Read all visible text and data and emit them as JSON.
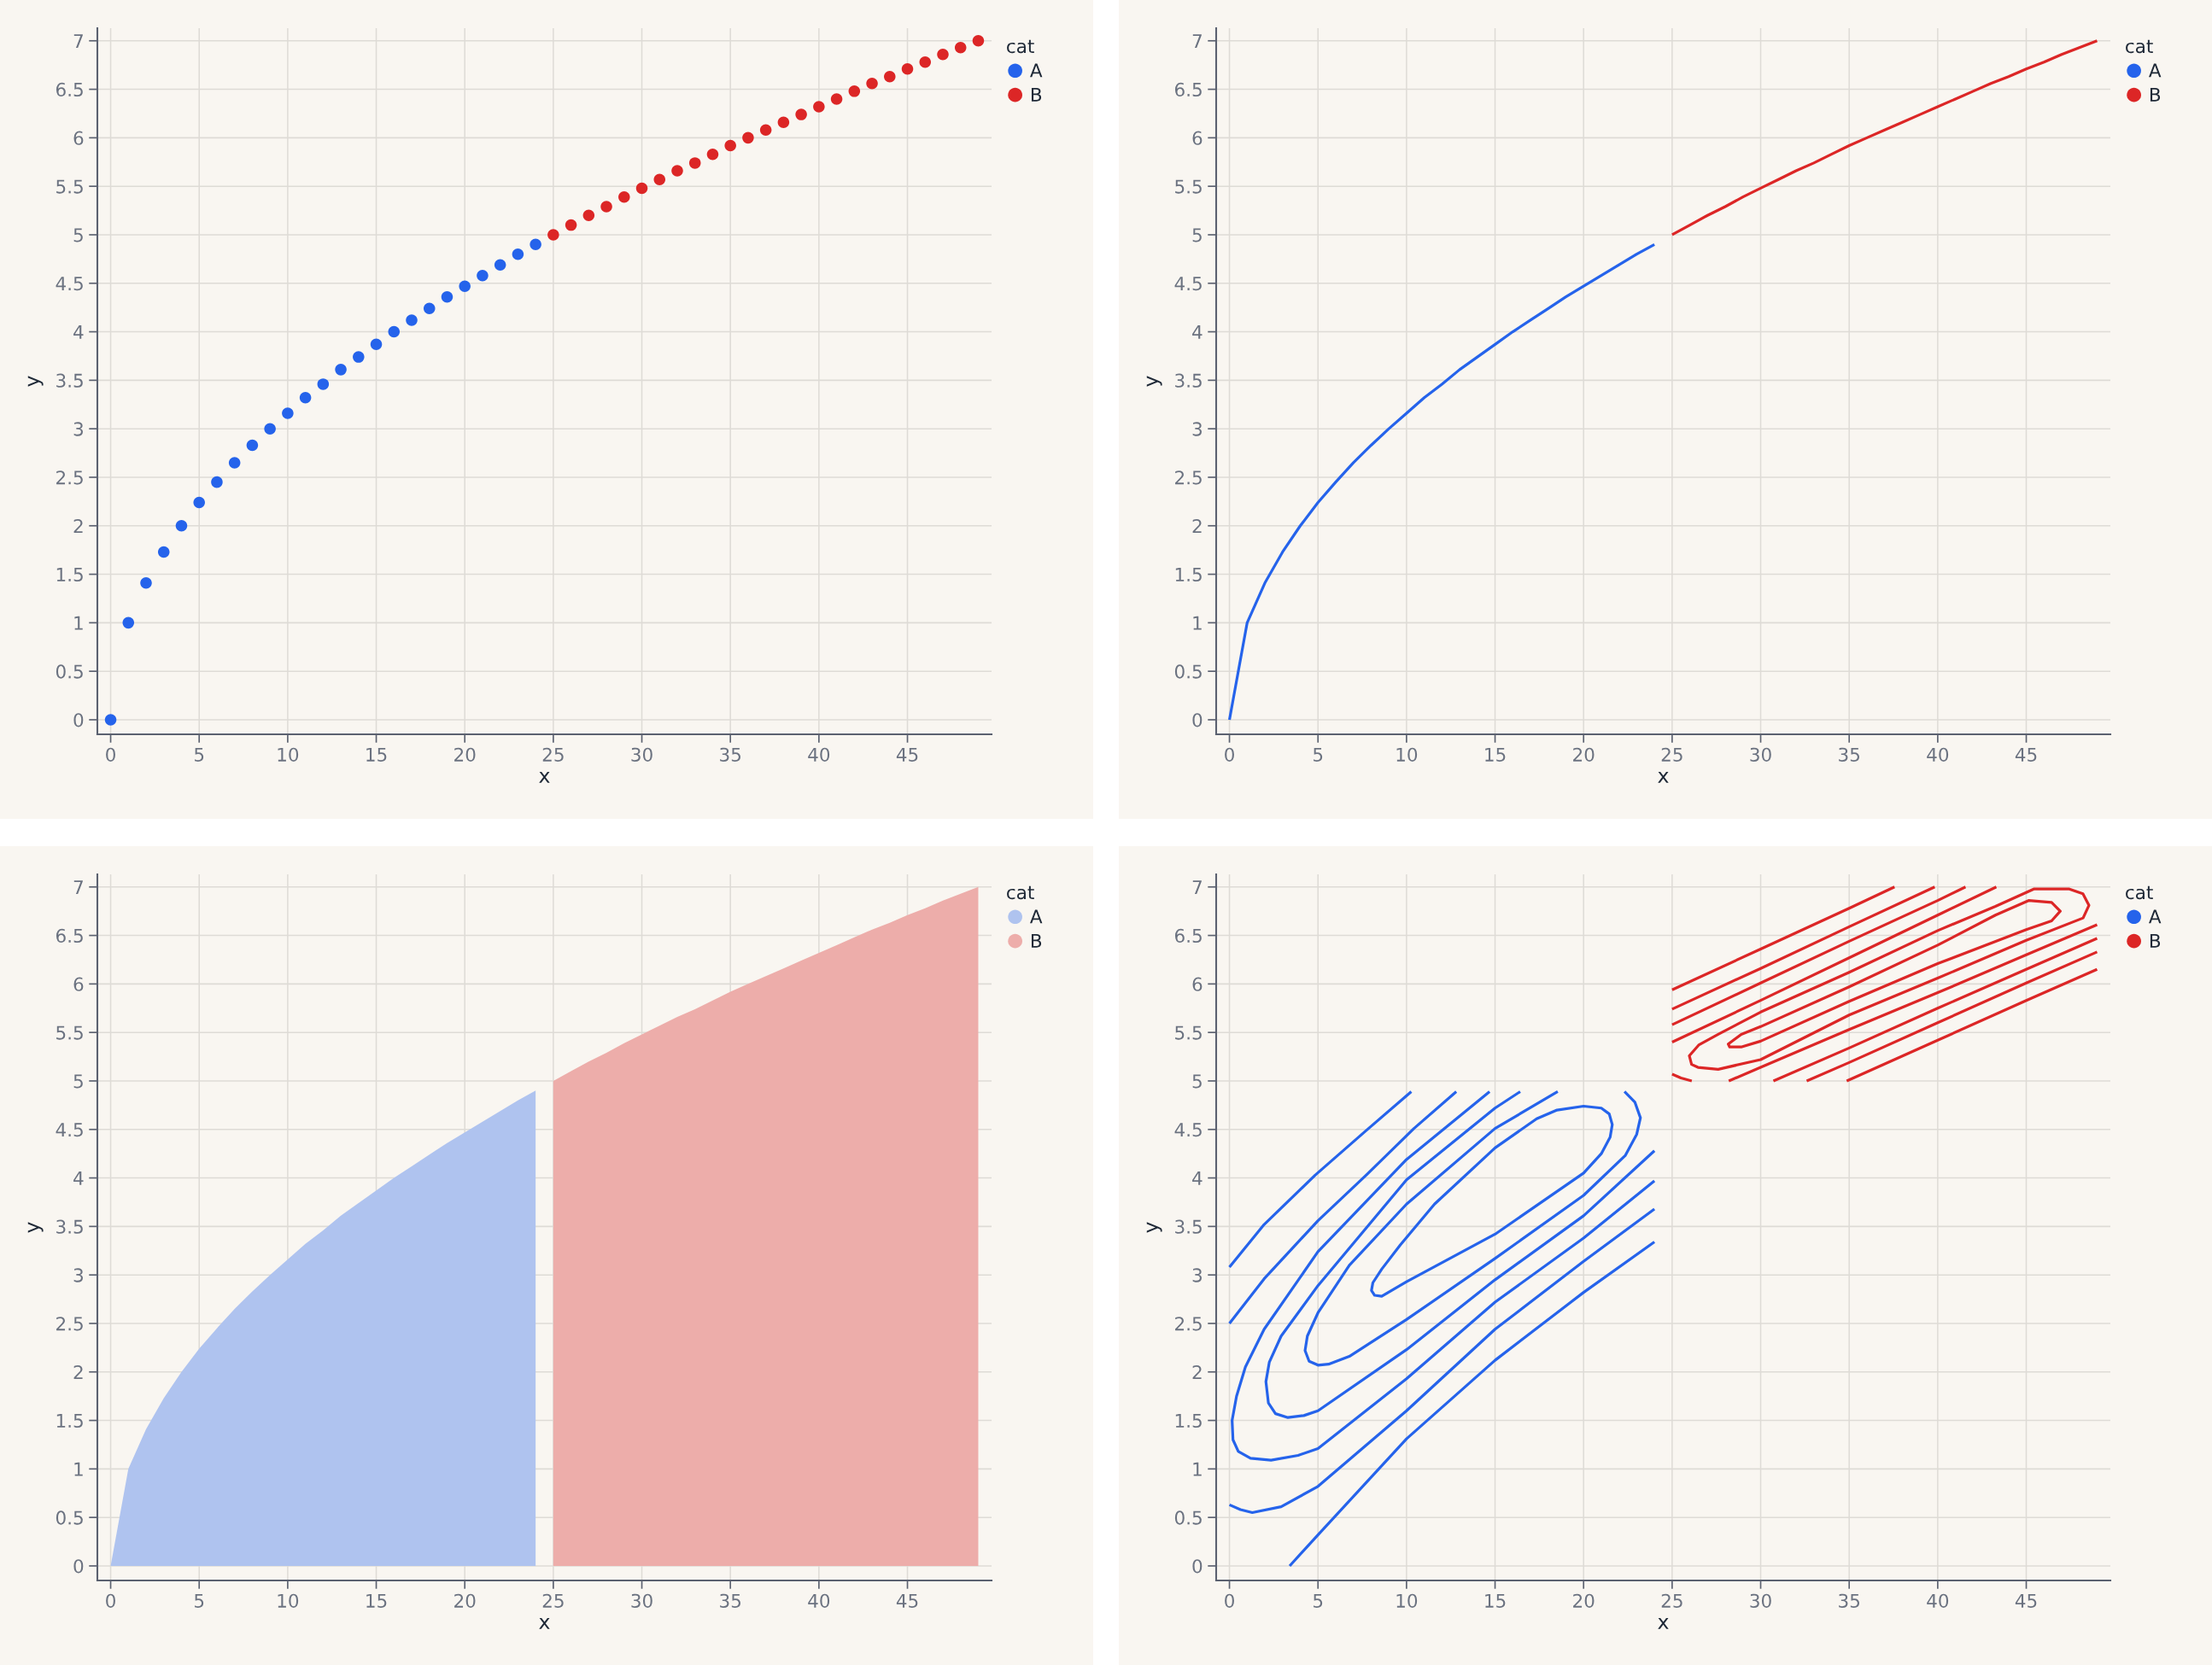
{
  "chart_data": [
    {
      "type": "scatter",
      "marker": "circle",
      "xlabel": "x",
      "ylabel": "y",
      "legend_title": "cat",
      "legend": "top right",
      "grid": true,
      "xlim": [
        -0.75,
        49.75
      ],
      "ylim": [
        -0.15,
        7.13
      ],
      "xticks": [
        0,
        5,
        10,
        15,
        20,
        25,
        30,
        35,
        40,
        45
      ],
      "yticks": [
        0,
        0.5,
        1,
        1.5,
        2,
        2.5,
        3,
        3.5,
        4,
        4.5,
        5,
        5.5,
        6,
        6.5,
        7
      ],
      "series": [
        {
          "name": "A",
          "color": "#2563eb",
          "x": [
            0,
            1,
            2,
            3,
            4,
            5,
            6,
            7,
            8,
            9,
            10,
            11,
            12,
            13,
            14,
            15,
            16,
            17,
            18,
            19,
            20,
            21,
            22,
            23,
            24
          ],
          "values": [
            0,
            1,
            1.41,
            1.73,
            2,
            2.24,
            2.45,
            2.65,
            2.83,
            3,
            3.16,
            3.32,
            3.46,
            3.61,
            3.74,
            3.87,
            4,
            4.12,
            4.24,
            4.36,
            4.47,
            4.58,
            4.69,
            4.8,
            4.9
          ]
        },
        {
          "name": "B",
          "color": "#dc2626",
          "x": [
            25,
            26,
            27,
            28,
            29,
            30,
            31,
            32,
            33,
            34,
            35,
            36,
            37,
            38,
            39,
            40,
            41,
            42,
            43,
            44,
            45,
            46,
            47,
            48,
            49
          ],
          "values": [
            5,
            5.1,
            5.2,
            5.29,
            5.39,
            5.48,
            5.57,
            5.66,
            5.74,
            5.83,
            5.92,
            6,
            6.08,
            6.16,
            6.24,
            6.32,
            6.4,
            6.48,
            6.56,
            6.63,
            6.71,
            6.78,
            6.86,
            6.93,
            7
          ]
        }
      ]
    },
    {
      "type": "line",
      "xlabel": "x",
      "ylabel": "y",
      "legend_title": "cat",
      "legend": "top right",
      "grid": true,
      "xlim": [
        -0.75,
        49.75
      ],
      "ylim": [
        -0.15,
        7.13
      ],
      "xticks": [
        0,
        5,
        10,
        15,
        20,
        25,
        30,
        35,
        40,
        45
      ],
      "yticks": [
        0,
        0.5,
        1,
        1.5,
        2,
        2.5,
        3,
        3.5,
        4,
        4.5,
        5,
        5.5,
        6,
        6.5,
        7
      ],
      "series": [
        {
          "name": "A",
          "color": "#2563eb",
          "x": [
            0,
            1,
            2,
            3,
            4,
            5,
            6,
            7,
            8,
            9,
            10,
            11,
            12,
            13,
            14,
            15,
            16,
            17,
            18,
            19,
            20,
            21,
            22,
            23,
            24
          ],
          "values": [
            0,
            1,
            1.41,
            1.73,
            2,
            2.24,
            2.45,
            2.65,
            2.83,
            3,
            3.16,
            3.32,
            3.46,
            3.61,
            3.74,
            3.87,
            4,
            4.12,
            4.24,
            4.36,
            4.47,
            4.58,
            4.69,
            4.8,
            4.9
          ]
        },
        {
          "name": "B",
          "color": "#dc2626",
          "x": [
            25,
            26,
            27,
            28,
            29,
            30,
            31,
            32,
            33,
            34,
            35,
            36,
            37,
            38,
            39,
            40,
            41,
            42,
            43,
            44,
            45,
            46,
            47,
            48,
            49
          ],
          "values": [
            5,
            5.1,
            5.2,
            5.29,
            5.39,
            5.48,
            5.57,
            5.66,
            5.74,
            5.83,
            5.92,
            6,
            6.08,
            6.16,
            6.24,
            6.32,
            6.4,
            6.48,
            6.56,
            6.63,
            6.71,
            6.78,
            6.86,
            6.93,
            7
          ]
        }
      ]
    },
    {
      "type": "area",
      "xlabel": "x",
      "ylabel": "y",
      "legend_title": "cat",
      "legend": "top right",
      "grid": true,
      "xlim": [
        -0.75,
        49.75
      ],
      "ylim": [
        -0.15,
        7.13
      ],
      "xticks": [
        0,
        5,
        10,
        15,
        20,
        25,
        30,
        35,
        40,
        45
      ],
      "yticks": [
        0,
        0.5,
        1,
        1.5,
        2,
        2.5,
        3,
        3.5,
        4,
        4.5,
        5,
        5.5,
        6,
        6.5,
        7
      ],
      "series": [
        {
          "name": "A",
          "color": "#afc3ef",
          "x": [
            0,
            1,
            2,
            3,
            4,
            5,
            6,
            7,
            8,
            9,
            10,
            11,
            12,
            13,
            14,
            15,
            16,
            17,
            18,
            19,
            20,
            21,
            22,
            23,
            24
          ],
          "values": [
            0,
            1,
            1.41,
            1.73,
            2,
            2.24,
            2.45,
            2.65,
            2.83,
            3,
            3.16,
            3.32,
            3.46,
            3.61,
            3.74,
            3.87,
            4,
            4.12,
            4.24,
            4.36,
            4.47,
            4.58,
            4.69,
            4.8,
            4.9
          ]
        },
        {
          "name": "B",
          "color": "#edadaa",
          "x": [
            25,
            26,
            27,
            28,
            29,
            30,
            31,
            32,
            33,
            34,
            35,
            36,
            37,
            38,
            39,
            40,
            41,
            42,
            43,
            44,
            45,
            46,
            47,
            48,
            49
          ],
          "values": [
            5,
            5.1,
            5.2,
            5.29,
            5.39,
            5.48,
            5.57,
            5.66,
            5.74,
            5.83,
            5.92,
            6,
            6.08,
            6.16,
            6.24,
            6.32,
            6.4,
            6.48,
            6.56,
            6.63,
            6.71,
            6.78,
            6.86,
            6.93,
            7
          ]
        }
      ]
    },
    {
      "type": "line",
      "xlabel": "x",
      "ylabel": "y",
      "legend_title": "cat",
      "legend": "top right",
      "grid": true,
      "xlim": [
        -0.75,
        49.75
      ],
      "ylim": [
        -0.15,
        7.13
      ],
      "xticks": [
        0,
        5,
        10,
        15,
        20,
        25,
        30,
        35,
        40,
        45
      ],
      "yticks": [
        0,
        0.5,
        1,
        1.5,
        2,
        2.5,
        3,
        3.5,
        4,
        4.5,
        5,
        5.5,
        6,
        6.5,
        7
      ],
      "series": [
        {
          "name": "A",
          "color": "#2563eb",
          "x": [
            0,
            1.96,
            4.85,
            7.73,
            10.27
          ],
          "values": [
            3.08,
            3.52,
            4.03,
            4.49,
            4.89
          ]
        },
        {
          "color": "#2563eb",
          "x": [
            0,
            1.96,
            5.0,
            7.73,
            10.42,
            12.81
          ],
          "values": [
            2.5,
            2.96,
            3.56,
            4.03,
            4.51,
            4.89
          ]
        },
        {
          "color": "#2563eb",
          "x": [
            14.69,
            10.0,
            5.0,
            1.96,
            0.9,
            0.4,
            0.15,
            0.2,
            0.5,
            1.19,
            2.35,
            3.88,
            5.0,
            10.0,
            15.0,
            20.0,
            24.0
          ],
          "values": [
            4.89,
            4.19,
            3.24,
            2.44,
            2.05,
            1.75,
            1.5,
            1.3,
            1.18,
            1.11,
            1.09,
            1.14,
            1.21,
            1.93,
            2.72,
            3.38,
            3.97
          ]
        },
        {
          "color": "#2563eb",
          "x": [
            16.42,
            15.0,
            10.0,
            5.0,
            2.92,
            2.25,
            2.06,
            2.2,
            2.6,
            3.3,
            4.2,
            5.0,
            10.0,
            15.0,
            20.0,
            24.0
          ],
          "values": [
            4.89,
            4.72,
            3.98,
            2.89,
            2.37,
            2.1,
            1.9,
            1.68,
            1.57,
            1.53,
            1.55,
            1.6,
            2.23,
            2.95,
            3.61,
            4.28
          ]
        },
        {
          "color": "#2563eb",
          "x": [
            18.54,
            15.0,
            10.0,
            6.77,
            5.0,
            4.4,
            4.27,
            4.5,
            5.0,
            5.6,
            6.77,
            10.0,
            15.0,
            20.0,
            22.35,
            23.0,
            23.21,
            22.9,
            22.31
          ],
          "values": [
            4.89,
            4.51,
            3.73,
            3.1,
            2.61,
            2.37,
            2.22,
            2.11,
            2.07,
            2.08,
            2.16,
            2.54,
            3.17,
            3.82,
            4.23,
            4.45,
            4.62,
            4.78,
            4.89
          ]
        },
        {
          "color": "#2563eb",
          "x": [
            10.0,
            15.0,
            20.0,
            21.0,
            21.5,
            21.62,
            21.45,
            21.0,
            20.0,
            18.5,
            17.35,
            15.0,
            11.58,
            9.65,
            8.6,
            8.1,
            8.02,
            8.2,
            8.6,
            10.0,
            15.0
          ],
          "values": [
            2.93,
            3.42,
            4.05,
            4.25,
            4.42,
            4.55,
            4.66,
            4.72,
            4.74,
            4.7,
            4.61,
            4.31,
            3.73,
            3.31,
            3.06,
            2.92,
            2.84,
            2.79,
            2.78,
            2.93,
            3.42
          ]
        },
        {
          "color": "#2563eb",
          "x": [
            0,
            0.62,
            1.29,
            2.92,
            5.0,
            10.0,
            15.0,
            20.0,
            24.0
          ],
          "values": [
            0.63,
            0.58,
            0.55,
            0.61,
            0.82,
            1.6,
            2.44,
            3.14,
            3.68
          ]
        },
        {
          "color": "#2563eb",
          "x": [
            3.4,
            5.0,
            10.0,
            15.0,
            20.0,
            24.0
          ],
          "values": [
            0,
            0.32,
            1.31,
            2.12,
            2.82,
            3.34
          ]
        },
        {
          "name": "B",
          "color": "#dc2626",
          "x": [
            25,
            30,
            35,
            37.56
          ],
          "values": [
            5.94,
            6.36,
            6.78,
            7.0
          ]
        },
        {
          "color": "#dc2626",
          "x": [
            25,
            30,
            35,
            39.83
          ],
          "values": [
            5.74,
            6.16,
            6.59,
            7.0
          ]
        },
        {
          "color": "#dc2626",
          "x": [
            25,
            30,
            35,
            40,
            41.57
          ],
          "values": [
            5.58,
            6.01,
            6.44,
            6.86,
            7.0
          ]
        },
        {
          "color": "#dc2626",
          "x": [
            25,
            30,
            35,
            40,
            43.31
          ],
          "values": [
            5.4,
            5.83,
            6.27,
            6.71,
            7.0
          ]
        },
        {
          "color": "#dc2626",
          "x": [
            35.0,
            40.0,
            45.0,
            48.21,
            48.54,
            48.2,
            47.4,
            45.45,
            43.26,
            40.0,
            35.0,
            30.0,
            27.6,
            26.5,
            25.97,
            26.1,
            26.46,
            27.6,
            30.0,
            35.0,
            40.0
          ],
          "values": [
            5.68,
            6.06,
            6.45,
            6.68,
            6.81,
            6.93,
            6.98,
            6.98,
            6.8,
            6.55,
            6.12,
            5.71,
            5.48,
            5.37,
            5.26,
            5.17,
            5.14,
            5.12,
            5.22,
            5.68,
            6.06
          ]
        },
        {
          "color": "#dc2626",
          "x": [
            35.0,
            40.0,
            45.0,
            46.43,
            46.92,
            46.43,
            45.13,
            43.26,
            40.0,
            35.0,
            30.0,
            28.9,
            28.17,
            28.25,
            28.9,
            30.0,
            35.0,
            40.0
          ],
          "values": [
            5.82,
            6.21,
            6.56,
            6.65,
            6.75,
            6.84,
            6.86,
            6.71,
            6.4,
            5.97,
            5.56,
            5.48,
            5.38,
            5.35,
            5.35,
            5.41,
            5.82,
            6.21
          ]
        },
        {
          "color": "#dc2626",
          "x": [
            25,
            25.5,
            26.11
          ],
          "values": [
            5.07,
            5.03,
            5.0
          ]
        },
        {
          "color": "#dc2626",
          "x": [
            28.2,
            30.0,
            35.0,
            40.0,
            45.0,
            49.0
          ],
          "values": [
            5.0,
            5.14,
            5.53,
            5.91,
            6.3,
            6.61
          ]
        },
        {
          "color": "#dc2626",
          "x": [
            30.72,
            35.0,
            40.0,
            45.0,
            49.0
          ],
          "values": [
            5.0,
            5.34,
            5.75,
            6.15,
            6.47
          ]
        },
        {
          "color": "#dc2626",
          "x": [
            32.6,
            35.0,
            40.0,
            45.0,
            49.0
          ],
          "values": [
            5.0,
            5.19,
            5.6,
            6.01,
            6.33
          ]
        },
        {
          "color": "#dc2626",
          "x": [
            34.86,
            40.0,
            45.0,
            49.0
          ],
          "values": [
            5.0,
            5.42,
            5.83,
            6.15
          ]
        }
      ]
    }
  ]
}
